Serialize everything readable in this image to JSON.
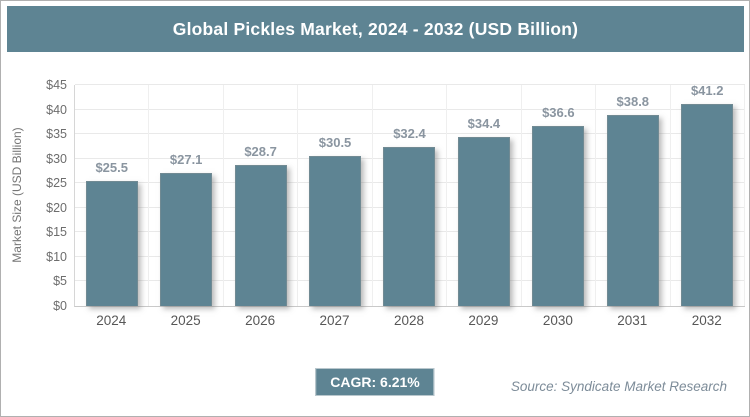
{
  "header": {
    "title": "Global Pickles Market, 2024 - 2032 (USD Billion)"
  },
  "chart_data": {
    "type": "bar",
    "title": "Global Pickles Market, 2024 - 2032 (USD Billion)",
    "categories": [
      "2024",
      "2025",
      "2026",
      "2027",
      "2028",
      "2029",
      "2030",
      "2031",
      "2032"
    ],
    "values": [
      25.5,
      27.1,
      28.7,
      30.5,
      32.4,
      34.4,
      36.6,
      38.8,
      41.2
    ],
    "value_labels": [
      "$25.5",
      "$27.1",
      "$28.7",
      "$30.5",
      "$32.4",
      "$34.4",
      "$36.6",
      "$38.8",
      "$41.2"
    ],
    "xlabel": "",
    "ylabel": "Market Size (USD Billion)",
    "ylim": [
      0,
      45
    ],
    "ytick_step": 5,
    "ytick_labels": [
      "$0",
      "$5",
      "$10",
      "$15",
      "$20",
      "$25",
      "$30",
      "$35",
      "$40",
      "$45"
    ],
    "grid": true,
    "legend": false
  },
  "footer": {
    "cagr_label": "CAGR: 6.21%",
    "source": "Source: Syndicate Market Research"
  },
  "colors": {
    "accent": "#5e8493",
    "bar": "#5e8493",
    "grid": "#e9e9e9",
    "data_label": "#8a95a0",
    "source_text": "#7d8c99"
  }
}
